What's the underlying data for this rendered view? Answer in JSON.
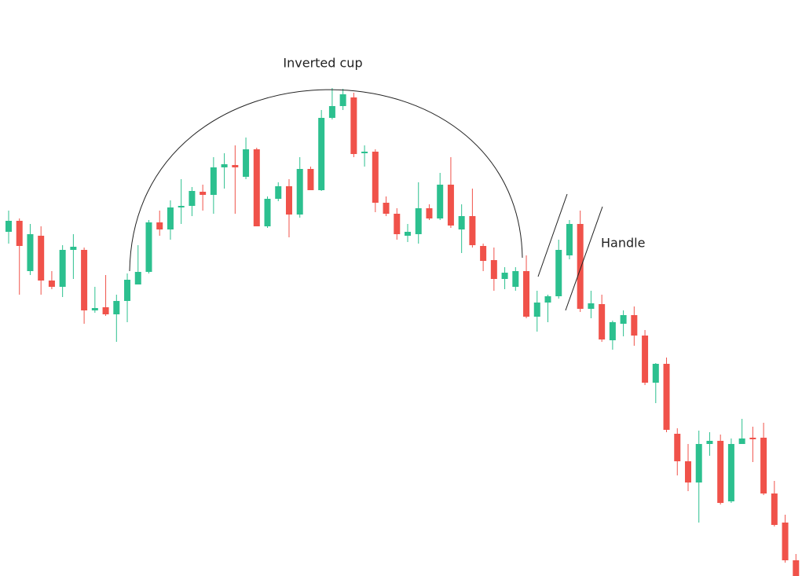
{
  "chart_data": {
    "type": "candlestick",
    "up_color": "#2cc08f",
    "down_color": "#f0524a",
    "ylim": [
      0,
      733
    ],
    "annotations": [
      "Inverted cup",
      "Handle"
    ],
    "open": [
      438,
      452,
      388,
      433,
      376,
      368,
      415,
      415,
      338,
      342,
      333,
      350,
      371,
      387,
      450,
      441,
      469,
      471,
      489,
      485,
      520,
      523,
      508,
      543,
      445,
      480,
      496,
      460,
      518,
      491,
      583,
      598,
      609,
      538,
      540,
      475,
      461,
      433,
      435,
      468,
      455,
      498,
      441,
      458,
      420,
      402,
      378,
      368,
      388,
      330,
      348,
      356,
      408,
      448,
      340,
      346,
      300,
      321,
      332,
      306,
      246,
      270,
      181,
      146,
      119,
      168,
      172,
      95,
      168,
      176,
      176,
      105,
      68,
      20
    ],
    "high": [
      465,
      455,
      448,
      445,
      388,
      421,
      435,
      418,
      368,
      383,
      358,
      385,
      421,
      453,
      465,
      478,
      505,
      495,
      498,
      533,
      538,
      548,
      558,
      545,
      483,
      501,
      505,
      533,
      521,
      593,
      621,
      620,
      615,
      548,
      543,
      483,
      468,
      448,
      501,
      473,
      513,
      533,
      473,
      493,
      423,
      418,
      393,
      393,
      408,
      363,
      358,
      428,
      453,
      465,
      363,
      358,
      325,
      338,
      343,
      313,
      271,
      278,
      188,
      168,
      185,
      183,
      180,
      175,
      200,
      190,
      195,
      121,
      78,
      28
    ],
    "low": [
      423,
      358,
      383,
      358,
      365,
      355,
      378,
      321,
      335,
      331,
      298,
      323,
      371,
      385,
      433,
      428,
      448,
      458,
      465,
      461,
      493,
      461,
      505,
      445,
      443,
      477,
      431,
      456,
      491,
      490,
      581,
      593,
      533,
      521,
      463,
      458,
      428,
      425,
      423,
      453,
      453,
      443,
      411,
      418,
      388,
      363,
      365,
      363,
      328,
      311,
      323,
      353,
      403,
      336,
      328,
      298,
      288,
      305,
      293,
      243,
      220,
      183,
      128,
      108,
      68,
      153,
      91,
      93,
      168,
      145,
      103,
      63,
      17,
      0
    ],
    "close": [
      452,
      420,
      435,
      376,
      368,
      415,
      419,
      338,
      341,
      333,
      350,
      377,
      387,
      450,
      441,
      469,
      471,
      490,
      485,
      520,
      524,
      520,
      543,
      445,
      480,
      496,
      460,
      518,
      491,
      583,
      598,
      613,
      537,
      540,
      475,
      461,
      435,
      438,
      468,
      455,
      498,
      446,
      458,
      421,
      401,
      378,
      386,
      388,
      330,
      348,
      356,
      415,
      448,
      340,
      347,
      301,
      323,
      332,
      306,
      246,
      270,
      186,
      146,
      119,
      168,
      172,
      93,
      168,
      175,
      174,
      105,
      65,
      20,
      0
    ]
  }
}
